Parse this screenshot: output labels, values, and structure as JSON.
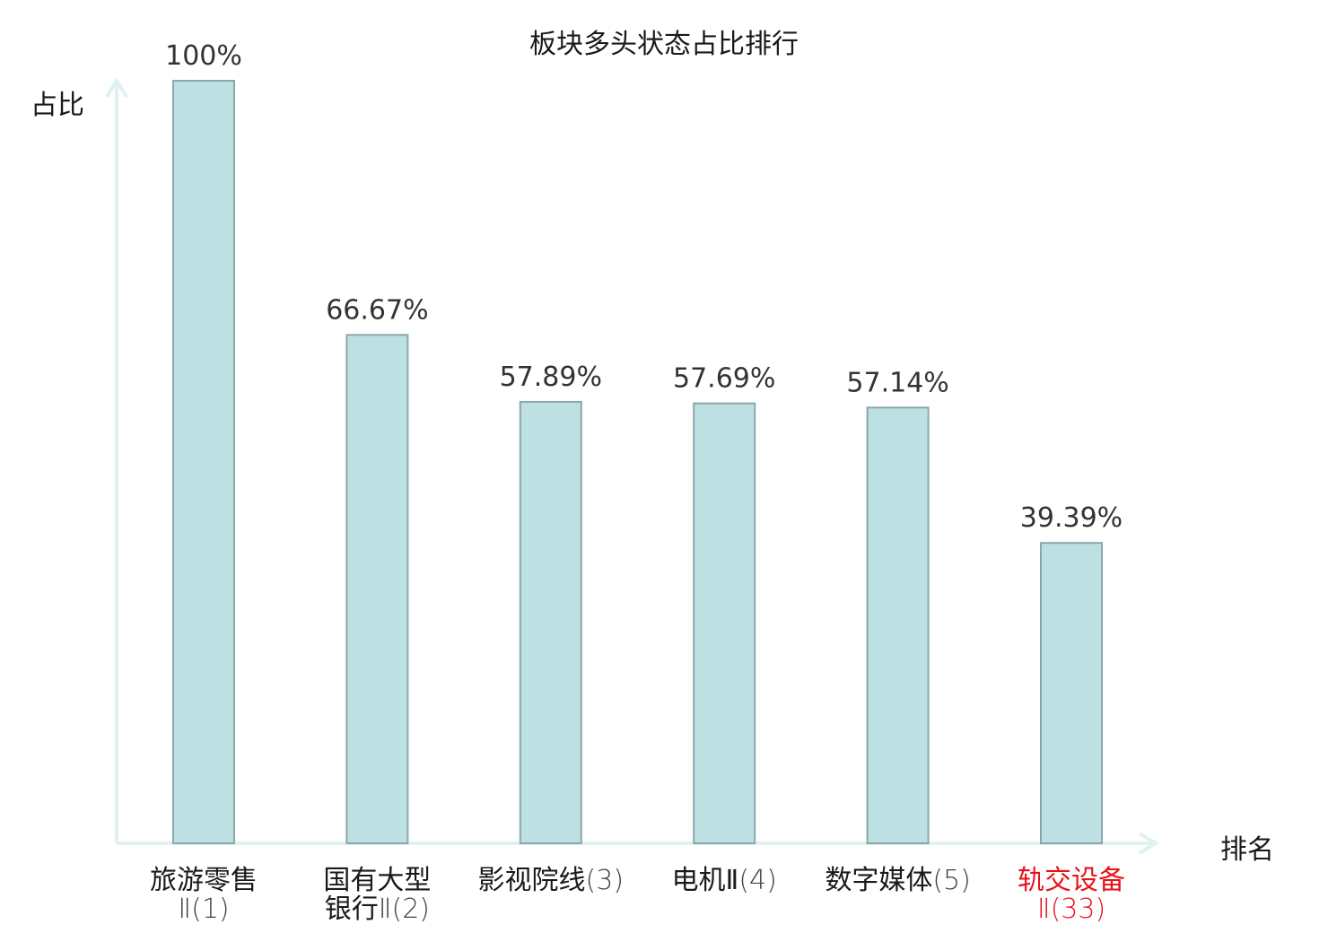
{
  "title": "板块多头状态占比排行",
  "y_axis_label": "占比",
  "x_axis_label": "排名",
  "colors": {
    "bar_fill": "#bde0e3",
    "bar_stroke": "#8aa8ab",
    "axis": "#dff2ef",
    "highlight_text": "#e8121a"
  },
  "chart_data": {
    "type": "bar",
    "title": "板块多头状态占比排行",
    "ylabel": "占比",
    "xlabel": "排名",
    "ylim": [
      0,
      100
    ],
    "grid": false,
    "categories": [
      {
        "line1": "旅游零售",
        "line2": "Ⅱ(1)",
        "highlight": false
      },
      {
        "line1": "国有大型",
        "line2": "银行Ⅱ(2)",
        "highlight": false
      },
      {
        "line1": "影视院线(3)",
        "line2": "",
        "highlight": false
      },
      {
        "line1": "电机Ⅱ(4)",
        "line2": "",
        "highlight": false
      },
      {
        "line1": "数字媒体(5)",
        "line2": "",
        "highlight": false
      },
      {
        "line1": "轨交设备",
        "line2": "Ⅱ(33)",
        "highlight": true
      }
    ],
    "values": [
      100,
      66.67,
      57.89,
      57.69,
      57.14,
      39.39
    ],
    "value_labels": [
      "100%",
      "66.67%",
      "57.89%",
      "57.69%",
      "57.14%",
      "39.39%"
    ]
  }
}
